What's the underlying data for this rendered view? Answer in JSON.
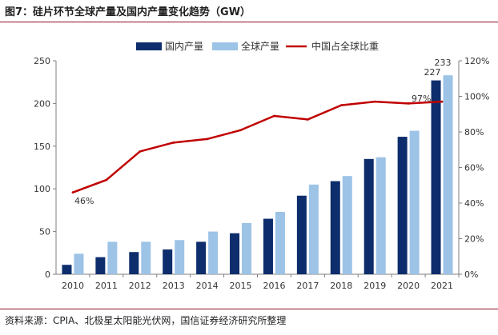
{
  "figure": {
    "title": "图7：硅片环节全球产量及国内产量变化趋势（GW）",
    "source": "资料来源：CPIA、北极星太阳能光伏网，国信证券经济研究所整理"
  },
  "colors": {
    "domestic": "#0d2d6c",
    "global": "#9dc3e6",
    "share_line": "#c00000",
    "rule": "#8a1020",
    "axis": "#7f7f7f"
  },
  "chart_data": {
    "type": "bar",
    "categories": [
      "2010",
      "2011",
      "2012",
      "2013",
      "2014",
      "2015",
      "2016",
      "2017",
      "2018",
      "2019",
      "2020",
      "2021"
    ],
    "series": [
      {
        "name": "国内产量",
        "type": "bar",
        "axis": "left",
        "values": [
          11,
          20,
          26,
          29,
          38,
          48,
          65,
          92,
          109,
          135,
          161,
          227
        ]
      },
      {
        "name": "全球产量",
        "type": "bar",
        "axis": "left",
        "values": [
          24,
          38,
          38,
          40,
          50,
          60,
          73,
          105,
          115,
          137,
          168,
          233
        ]
      },
      {
        "name": "中国占全球比重",
        "type": "line",
        "axis": "right",
        "values": [
          46,
          53,
          69,
          74,
          76,
          81,
          89,
          87,
          95,
          97,
          96,
          97
        ]
      }
    ],
    "ylim": [
      0,
      250
    ],
    "yticks": [
      "0",
      "50",
      "100",
      "150",
      "200",
      "250"
    ],
    "y2lim": [
      0,
      120
    ],
    "y2ticks": [
      "0%",
      "20%",
      "40%",
      "60%",
      "80%",
      "100%",
      "120%"
    ],
    "annotations": [
      "46%",
      "97%",
      "227",
      "233"
    ],
    "legend_position": "top"
  }
}
